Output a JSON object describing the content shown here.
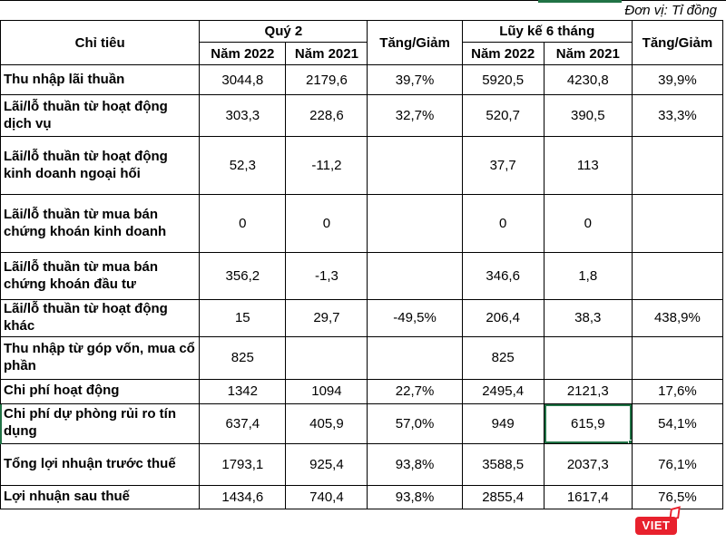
{
  "unit_label": "Đơn vị: Tỉ đồng",
  "table": {
    "header": {
      "criteria": "Chỉ tiêu",
      "q2": "Quý 2",
      "h1": "Lũy kế 6 tháng",
      "change": "Tăng/Giảm",
      "year2022": "Năm 2022",
      "year2021": "Năm 2021"
    },
    "rows": [
      {
        "label": "Thu nhập lãi thuần",
        "cells": [
          "3044,8",
          "2179,6",
          "39,7%",
          "5920,5",
          "4230,8",
          "39,9%"
        ]
      },
      {
        "label": "Lãi/lỗ thuần từ hoạt động dịch vụ",
        "cells": [
          "303,3",
          "228,6",
          "32,7%",
          "520,7",
          "390,5",
          "33,3%"
        ]
      },
      {
        "label": "Lãi/lỗ thuần từ hoạt động kinh doanh ngoại hối",
        "cells": [
          "52,3",
          "-11,2",
          "",
          "37,7",
          "113",
          ""
        ]
      },
      {
        "label": "Lãi/lỗ thuần từ mua bán chứng khoán kinh doanh",
        "cells": [
          "0",
          "0",
          "",
          "0",
          "0",
          ""
        ]
      },
      {
        "label": "Lãi/lỗ thuần từ mua bán chứng khoán đầu tư",
        "cells": [
          "356,2",
          "-1,3",
          "",
          "346,6",
          "1,8",
          ""
        ]
      },
      {
        "label": "Lãi/lỗ thuần từ hoạt động khác",
        "cells": [
          "15",
          "29,7",
          "-49,5%",
          "206,4",
          "38,3",
          "438,9%"
        ]
      },
      {
        "label": "Thu nhập từ góp vốn, mua cổ phần",
        "cells": [
          "825",
          "",
          "",
          "825",
          "",
          ""
        ]
      },
      {
        "label": "Chi phí hoạt động",
        "cells": [
          "1342",
          "1094",
          "22,7%",
          "2495,4",
          "2121,3",
          "17,6%"
        ]
      },
      {
        "label": "Chi phí dự phòng rủi ro tín dụng",
        "cells": [
          "637,4",
          "405,9",
          "57,0%",
          "949",
          "615,9",
          "54,1%"
        ]
      },
      {
        "label": "Tổng lợi nhuận trước thuế",
        "cells": [
          "1793,1",
          "925,4",
          "93,8%",
          "3588,5",
          "2037,3",
          "76,1%"
        ]
      },
      {
        "label": "Lợi nhuận sau thuế",
        "cells": [
          "1434,6",
          "740,4",
          "93,8%",
          "2855,4",
          "1617,4",
          "76,5%"
        ]
      }
    ]
  },
  "selection": {
    "row": 8,
    "cell": 4
  },
  "logo": {
    "text": "VIET"
  },
  "colors": {
    "selection_green": "#217346",
    "logo_red": "#e8212d",
    "border": "#000000"
  }
}
